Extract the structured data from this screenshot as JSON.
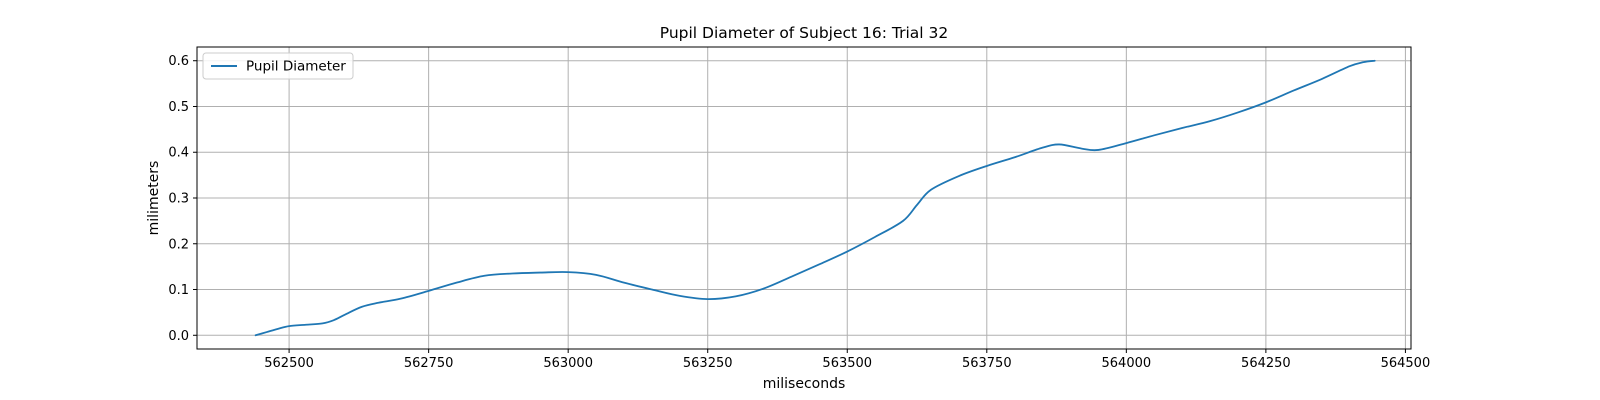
{
  "chart_data": {
    "type": "line",
    "title": "Pupil Diameter of Subject 16: Trial 32",
    "xlabel": "miliseconds",
    "ylabel": "milimeters",
    "xlim": [
      562335,
      564510
    ],
    "ylim": [
      -0.03,
      0.63
    ],
    "xticks": [
      562500,
      562750,
      563000,
      563250,
      563500,
      563750,
      564000,
      564250,
      564500
    ],
    "yticks": [
      0.0,
      0.1,
      0.2,
      0.3,
      0.4,
      0.5,
      0.6
    ],
    "ytick_labels": [
      "0.0",
      "0.1",
      "0.2",
      "0.3",
      "0.4",
      "0.5",
      "0.6"
    ],
    "grid": true,
    "legend_position": "top-left",
    "series": [
      {
        "name": "Pupil Diameter",
        "color": "#1f77b4",
        "x": [
          562440,
          562460,
          562480,
          562500,
          562530,
          562560,
          562580,
          562600,
          562630,
          562660,
          562700,
          562750,
          562800,
          562850,
          562900,
          562950,
          563000,
          563050,
          563100,
          563150,
          563200,
          563250,
          563300,
          563350,
          563400,
          563450,
          563500,
          563550,
          563600,
          563625,
          563650,
          563700,
          563750,
          563800,
          563850,
          563880,
          563920,
          563950,
          564000,
          564050,
          564100,
          564150,
          564200,
          564250,
          564300,
          564350,
          564400,
          564425,
          564445
        ],
        "y": [
          0.0,
          0.007,
          0.014,
          0.02,
          0.023,
          0.026,
          0.033,
          0.045,
          0.062,
          0.071,
          0.08,
          0.097,
          0.115,
          0.13,
          0.135,
          0.137,
          0.138,
          0.132,
          0.115,
          0.1,
          0.086,
          0.079,
          0.085,
          0.102,
          0.128,
          0.155,
          0.183,
          0.215,
          0.25,
          0.285,
          0.318,
          0.348,
          0.37,
          0.389,
          0.41,
          0.417,
          0.408,
          0.405,
          0.42,
          0.437,
          0.453,
          0.468,
          0.487,
          0.509,
          0.535,
          0.56,
          0.588,
          0.597,
          0.6
        ]
      }
    ]
  }
}
